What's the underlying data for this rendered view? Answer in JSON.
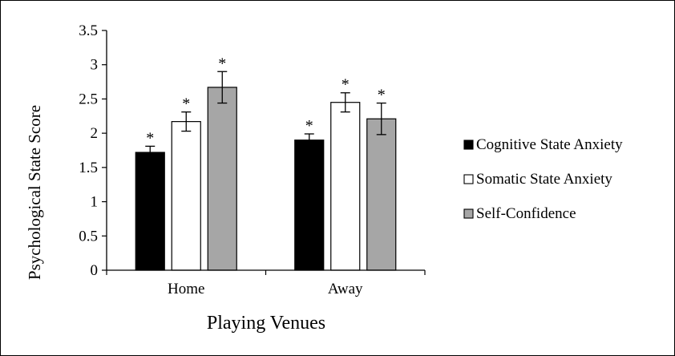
{
  "chart_data": {
    "type": "bar",
    "categories": [
      "Home",
      "Away"
    ],
    "series": [
      {
        "name": "Cognitive State Anxiety",
        "color": "#000000",
        "values": [
          1.72,
          1.9
        ],
        "errors": [
          0.09,
          0.09
        ]
      },
      {
        "name": "Somatic State Anxiety",
        "color": "#ffffff",
        "values": [
          2.17,
          2.45
        ],
        "errors": [
          0.14,
          0.14
        ]
      },
      {
        "name": "Self-Confidence",
        "color": "#a6a6a6",
        "values": [
          2.67,
          2.21
        ],
        "errors": [
          0.23,
          0.23
        ]
      }
    ],
    "annotations": [
      [
        "*",
        "*",
        "*"
      ],
      [
        "*",
        "*",
        "*"
      ]
    ],
    "ylabel": "Psychological State Score",
    "xlabel": "Playing Venues",
    "ylim": [
      0,
      3.5
    ],
    "yticks": [
      "0",
      "0.5",
      "1",
      "1.5",
      "2",
      "2.5",
      "3",
      "3.5"
    ],
    "legend_position": "right",
    "grid": false
  }
}
